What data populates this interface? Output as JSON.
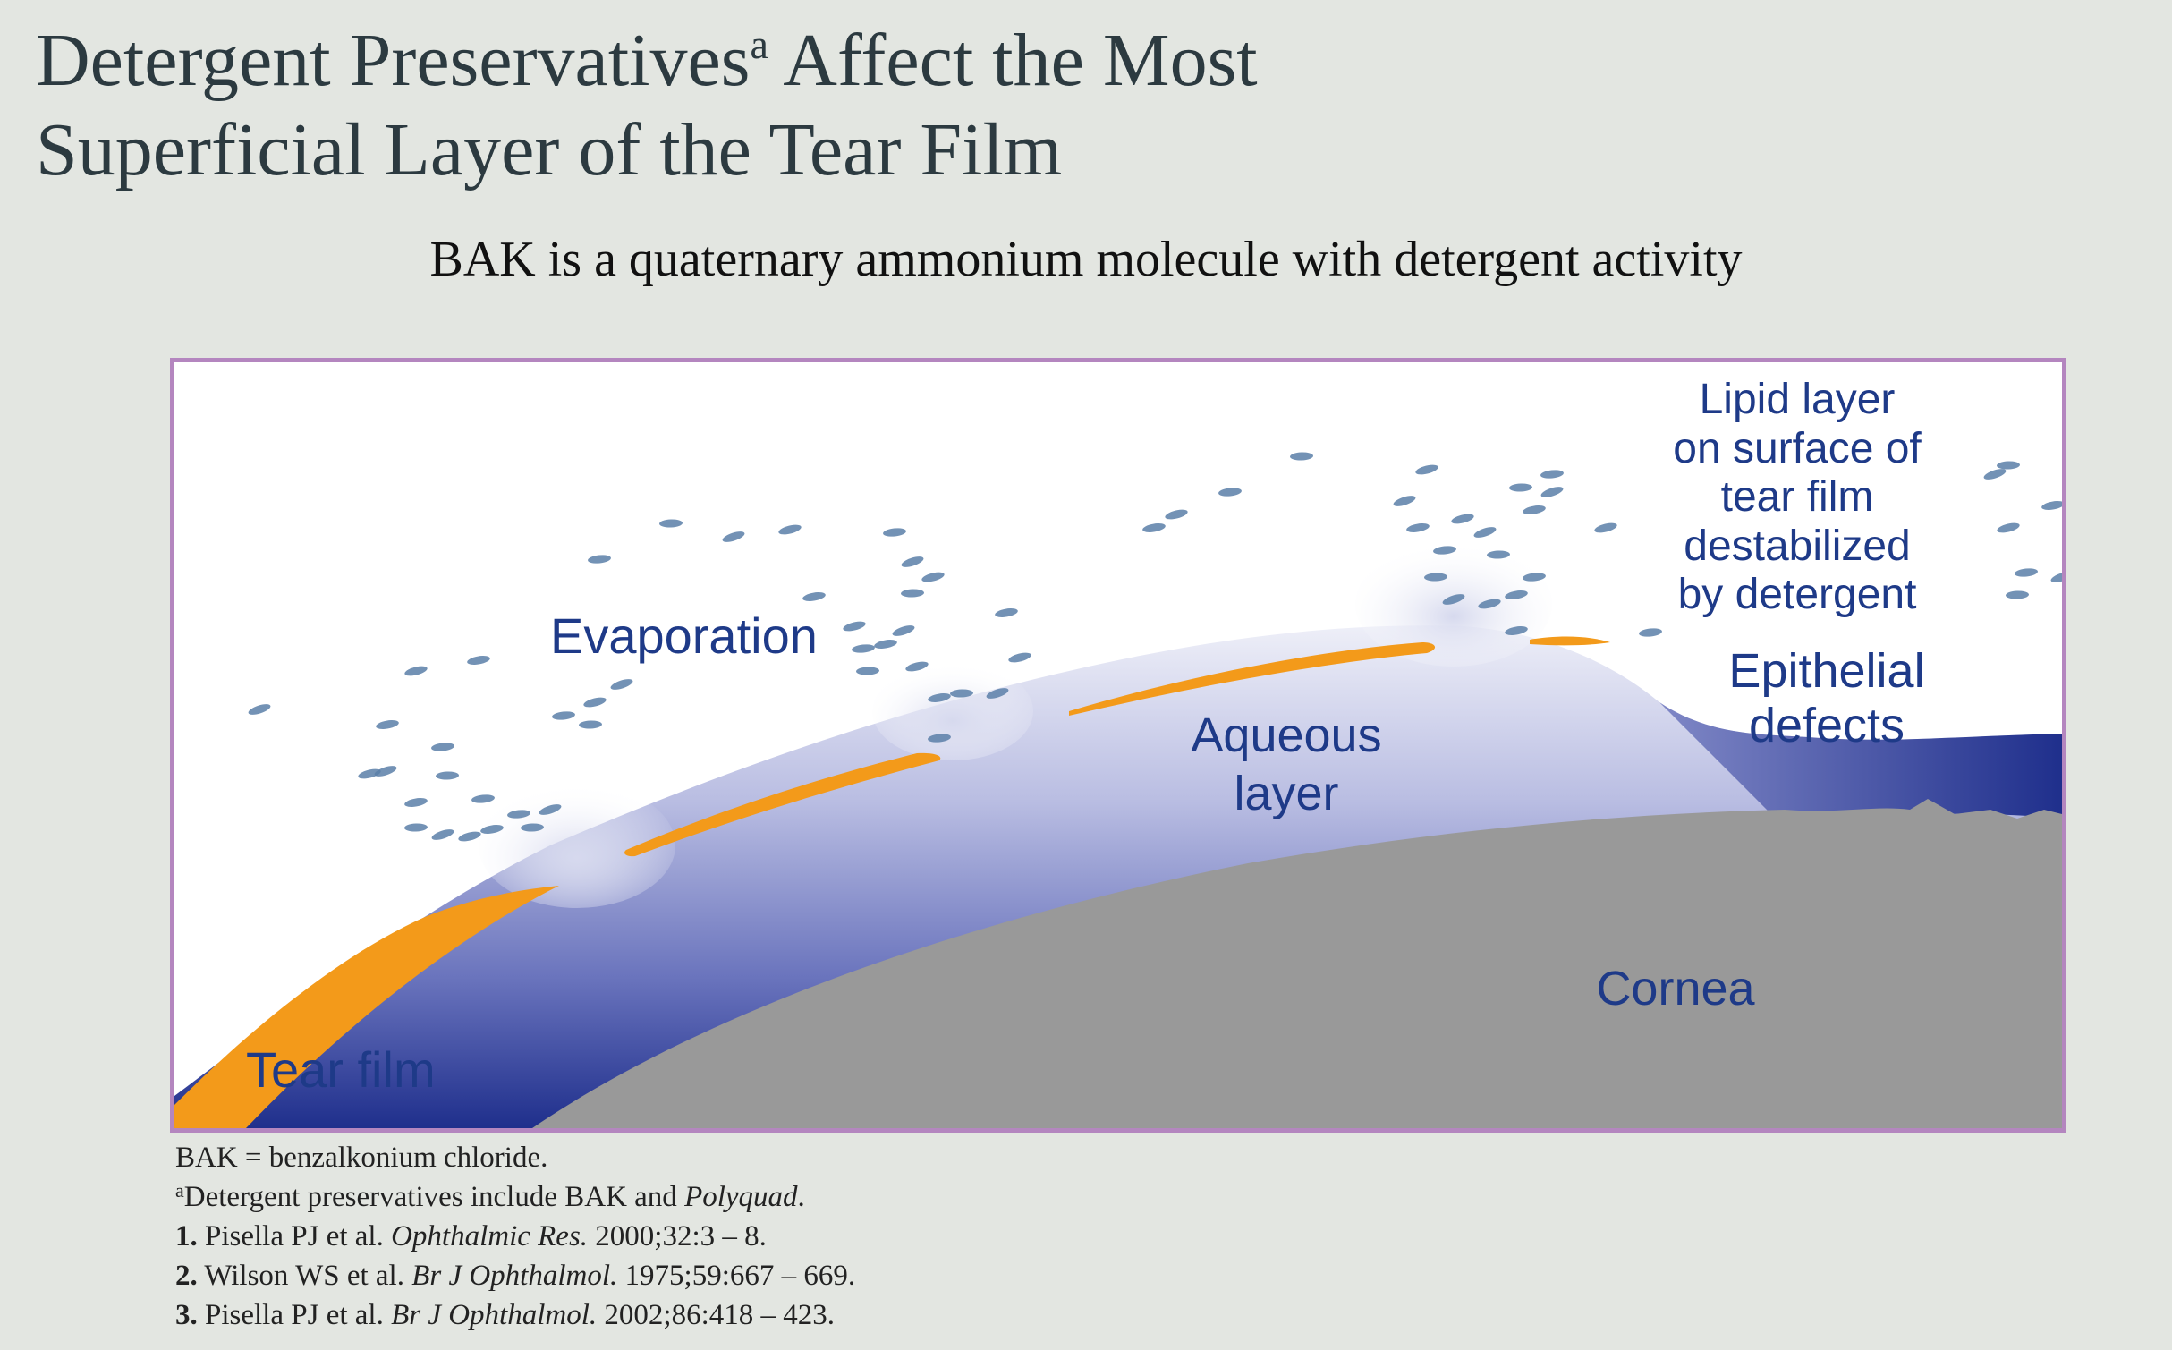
{
  "title": {
    "line1_prefix": "Detergent Preservatives",
    "line1_sup": "a",
    "line1_suffix": " Affect the Most",
    "line2": "Superficial Layer of the Tear Film"
  },
  "subtitle": "BAK is a quaternary ammonium molecule with detergent activity",
  "diagram": {
    "labels": {
      "evaporation": "Evaporation",
      "aqueous_line1": "Aqueous",
      "aqueous_line2": "layer",
      "lipid_line1": "Lipid layer",
      "lipid_line2": "on surface of",
      "lipid_line3": "tear film",
      "lipid_line4": "destabilized",
      "lipid_line5": "by detergent",
      "epithelial_line1": "Epithelial",
      "epithelial_line2": "defects",
      "cornea": "Cornea",
      "tear_film": "Tear film"
    },
    "colors": {
      "border": "#b486bf",
      "lipid": "#f39a1a",
      "aqueous_dark": "#1f2f8c",
      "aqueous_light": "#e8e9f5",
      "cornea": "#999999",
      "droplet": "#5a7fa8",
      "label": "#1e3a88"
    }
  },
  "footnotes": {
    "abbr": "BAK = benzalkonium chloride.",
    "note_sup": "a",
    "note_text": "Detergent preservatives include BAK and ",
    "note_italic": "Polyquad",
    "note_end": ".",
    "refs": [
      {
        "num": "1.",
        "authors": " Pisella PJ et al. ",
        "journal": "Ophthalmic Res.",
        "cite": " 2000;32:3 – 8."
      },
      {
        "num": "2.",
        "authors": " Wilson WS et al. ",
        "journal": "Br J Ophthalmol.",
        "cite": " 1975;59:667 – 669."
      },
      {
        "num": "3.",
        "authors": " Pisella PJ et al. ",
        "journal": "Br J Ophthalmol.",
        "cite": " 2002;86:418 – 423."
      }
    ]
  }
}
